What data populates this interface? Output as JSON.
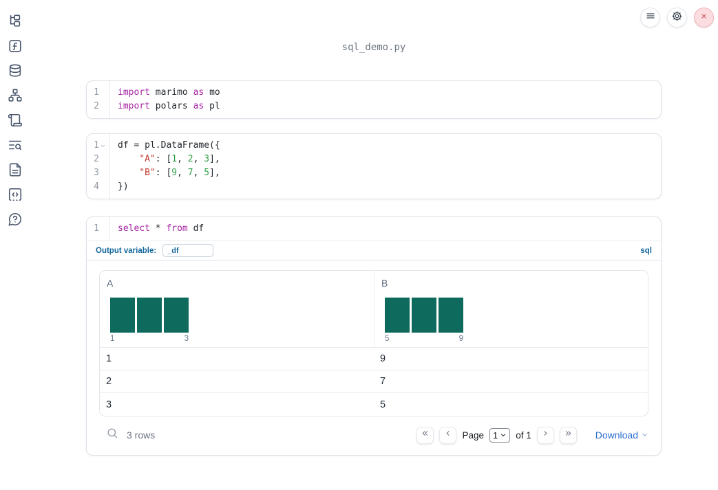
{
  "app": {
    "title": "sql_demo.py"
  },
  "topbar": {
    "icons": [
      "menu-icon",
      "settings-gear-icon",
      "close-icon"
    ]
  },
  "sidebar": {
    "items": [
      {
        "icon": "file-explorer-icon"
      },
      {
        "icon": "variables-icon"
      },
      {
        "icon": "datasources-icon"
      },
      {
        "icon": "dependency-graph-icon"
      },
      {
        "icon": "logs-icon"
      },
      {
        "icon": "outline-search-icon"
      },
      {
        "icon": "documentation-icon"
      },
      {
        "icon": "snippets-icon"
      },
      {
        "icon": "help-icon"
      }
    ]
  },
  "colors": {
    "accent_blue": "#15689d",
    "link_blue": "#2b6fd0",
    "bar_green": "#0e6a5c",
    "keyword_purple": "#a626a4",
    "string_red": "#c03a31",
    "number_green": "#2f9e44",
    "code_text": "#24292e",
    "close_red": "#d0545e"
  },
  "cells": [
    {
      "name": "imports-cell",
      "lines": [
        {
          "num": "1",
          "tokens": [
            {
              "t": "import",
              "c": "kw"
            },
            {
              "t": " marimo ",
              "c": "tx"
            },
            {
              "t": "as",
              "c": "kw"
            },
            {
              "t": " mo",
              "c": "tx"
            }
          ]
        },
        {
          "num": "2",
          "tokens": [
            {
              "t": "import",
              "c": "kw"
            },
            {
              "t": " polars ",
              "c": "tx"
            },
            {
              "t": "as",
              "c": "kw"
            },
            {
              "t": " pl",
              "c": "tx"
            }
          ]
        }
      ]
    },
    {
      "name": "dataframe-cell",
      "lines": [
        {
          "num": "1",
          "fold": true,
          "tokens": [
            {
              "t": "df = pl.DataFrame({",
              "c": "tx"
            }
          ]
        },
        {
          "num": "2",
          "tokens": [
            {
              "t": "    ",
              "c": "tx"
            },
            {
              "t": "\"A\"",
              "c": "str"
            },
            {
              "t": ": [",
              "c": "tx"
            },
            {
              "t": "1",
              "c": "num"
            },
            {
              "t": ", ",
              "c": "tx"
            },
            {
              "t": "2",
              "c": "num"
            },
            {
              "t": ", ",
              "c": "tx"
            },
            {
              "t": "3",
              "c": "num"
            },
            {
              "t": "],",
              "c": "tx"
            }
          ]
        },
        {
          "num": "3",
          "tokens": [
            {
              "t": "    ",
              "c": "tx"
            },
            {
              "t": "\"B\"",
              "c": "str"
            },
            {
              "t": ": [",
              "c": "tx"
            },
            {
              "t": "9",
              "c": "num"
            },
            {
              "t": ", ",
              "c": "tx"
            },
            {
              "t": "7",
              "c": "num"
            },
            {
              "t": ", ",
              "c": "tx"
            },
            {
              "t": "5",
              "c": "num"
            },
            {
              "t": "],",
              "c": "tx"
            }
          ]
        },
        {
          "num": "4",
          "tokens": [
            {
              "t": "})",
              "c": "tx"
            }
          ]
        }
      ]
    },
    {
      "name": "sql-cell",
      "lines": [
        {
          "num": "1",
          "tokens": [
            {
              "t": "select",
              "c": "kw"
            },
            {
              "t": " * ",
              "c": "tx"
            },
            {
              "t": "from",
              "c": "kw"
            },
            {
              "t": " df",
              "c": "tx"
            }
          ]
        }
      ],
      "output_variable_label": "Output variable:",
      "output_variable_value": "_df",
      "language_badge": "sql"
    }
  ],
  "table": {
    "columns": [
      {
        "label": "A",
        "ticks": [
          "1",
          "3"
        ]
      },
      {
        "label": "B",
        "ticks": [
          "5",
          "9"
        ]
      }
    ],
    "rows": [
      [
        "1",
        "9"
      ],
      [
        "2",
        "7"
      ],
      [
        "3",
        "5"
      ]
    ],
    "footer": {
      "row_count": "3 rows",
      "page_label": "Page",
      "page_value": "1",
      "page_total": "of 1",
      "download_label": "Download"
    }
  },
  "chart_data": [
    {
      "type": "bar",
      "title": "Column A histogram",
      "categories": [
        "1",
        "2",
        "3"
      ],
      "values": [
        1,
        1,
        1
      ],
      "xticks": [
        "1",
        "3"
      ],
      "bar_color": "#0e6a5c"
    },
    {
      "type": "bar",
      "title": "Column B histogram",
      "categories": [
        "5",
        "7",
        "9"
      ],
      "values": [
        1,
        1,
        1
      ],
      "xticks": [
        "5",
        "9"
      ],
      "bar_color": "#0e6a5c"
    }
  ]
}
